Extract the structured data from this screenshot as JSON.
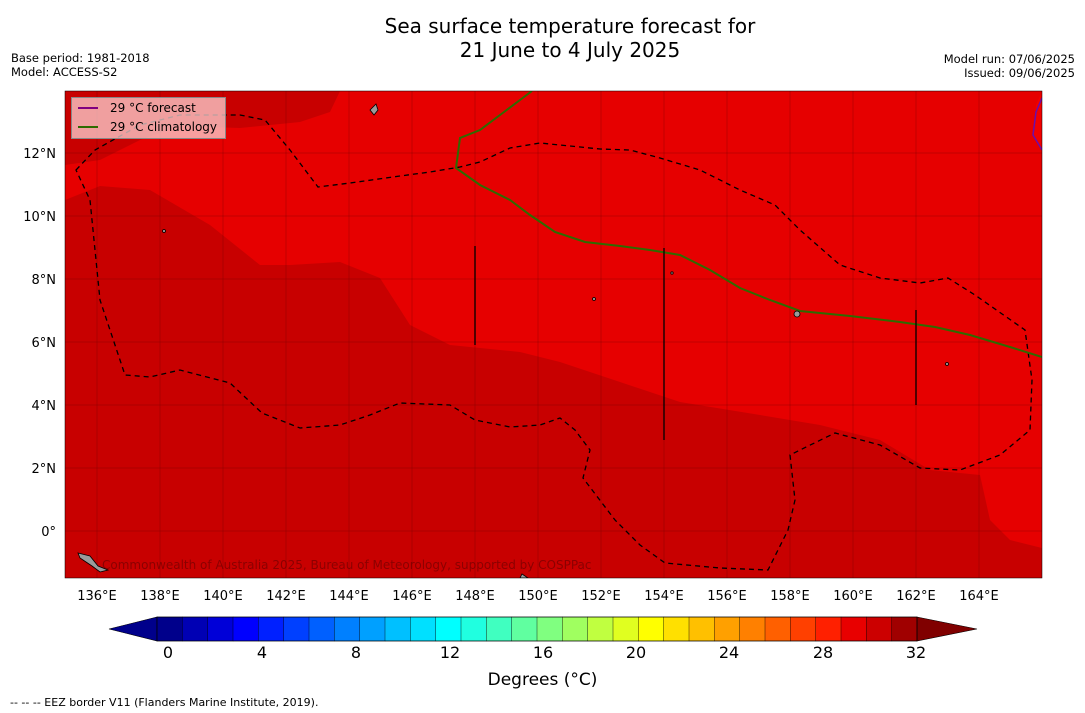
{
  "title_line1": "Sea surface temperature forecast for",
  "title_line2": "21 June to 4 July 2025",
  "meta_left": {
    "base_period": "Base period: 1981-2018",
    "model": "Model: ACCESS-S2"
  },
  "meta_right": {
    "model_run": "Model run: 07/06/2025",
    "issued": "Issued: 09/06/2025"
  },
  "legend": {
    "forecast": {
      "label": "29 °C  forecast",
      "color": "#800080"
    },
    "climatology": {
      "label": "29 °C  climatology",
      "color": "#2e6b00"
    }
  },
  "watermark": "Commonwealth of Australia 2025, Bureau of Meteorology, supported by COSPPac",
  "colorbar": {
    "title": "Degrees (°C)",
    "ticks": [
      "0",
      "4",
      "8",
      "12",
      "16",
      "20",
      "24",
      "28",
      "32"
    ],
    "colors": [
      "#00008b",
      "#0000b4",
      "#0000d8",
      "#0000ff",
      "#0020ff",
      "#0040ff",
      "#0060ff",
      "#0080ff",
      "#00a0ff",
      "#00c0ff",
      "#00e0ff",
      "#00ffff",
      "#20ffe0",
      "#40ffc0",
      "#60ffa0",
      "#80ff80",
      "#a0ff60",
      "#c0ff40",
      "#e0ff20",
      "#ffff00",
      "#ffe000",
      "#ffc000",
      "#ffa000",
      "#ff8000",
      "#ff6000",
      "#ff4000",
      "#ff2000",
      "#e80000",
      "#cc0000",
      "#a00000"
    ]
  },
  "axes": {
    "lon_labels": [
      "136°E",
      "138°E",
      "140°E",
      "142°E",
      "144°E",
      "146°E",
      "148°E",
      "150°E",
      "152°E",
      "154°E",
      "156°E",
      "158°E",
      "160°E",
      "162°E",
      "164°E"
    ],
    "lat_labels": [
      "12°N",
      "10°N",
      "8°N",
      "6°N",
      "4°N",
      "2°N",
      "0°"
    ]
  },
  "footer": "--  --  -- EEZ border V11 (Flanders Marine Institute, 2019)."
}
